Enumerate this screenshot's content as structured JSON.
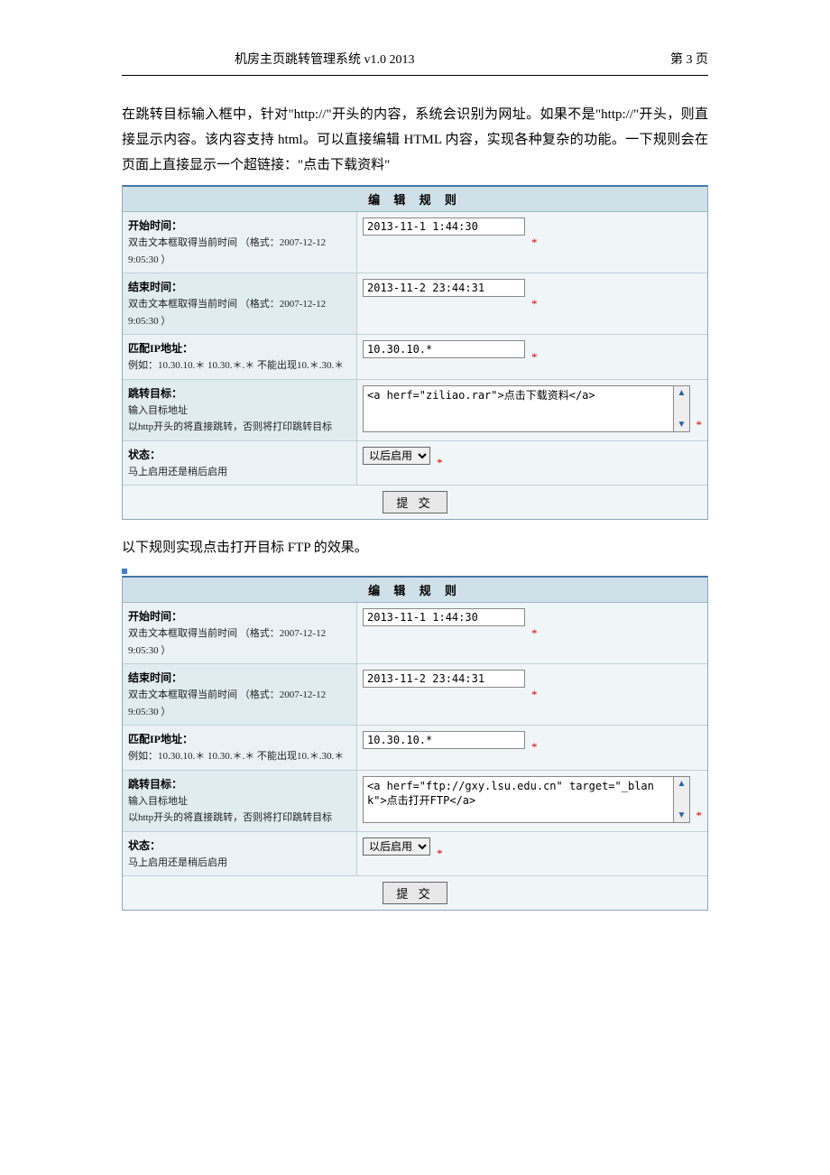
{
  "header": {
    "title": "机房主页跳转管理系统 v1.0   2013",
    "page_label": "第 3 页"
  },
  "paragraph1": "在跳转目标输入框中，针对\"http://\"开头的内容，系统会识别为网址。如果不是\"http://\"开头，则直接显示内容。该内容支持 html。可以直接编辑 HTML 内容，实现各种复杂的功能。一下规则会在页面上直接显示一个超链接：\"点击下载资料\"",
  "paragraph2": "以下规则实现点击打开目标 FTP 的效果。",
  "form_title": "编 辑 规 则",
  "labels": {
    "start_time_title": "开始时间：",
    "start_time_hint": "双击文本框取得当前时间 （格式：2007-12-12 9:05:30 ）",
    "end_time_title": "结束时间：",
    "end_time_hint": "双击文本框取得当前时间 （格式：2007-12-12 9:05:30 ）",
    "ip_title": "匹配IP地址：",
    "ip_hint": "例如：10.30.10.＊ 10.30.＊.＊  不能出现10.＊.30.＊",
    "target_title": "跳转目标：",
    "target_hint1": "输入目标地址",
    "target_hint2": "以http开头的将直接跳转，否则将打印跳转目标",
    "status_title": "状态：",
    "status_hint": "马上启用还是稍后启用"
  },
  "form1": {
    "start_time": "2013-11-1 1:44:30",
    "end_time": "2013-11-2 23:44:31",
    "ip": "10.30.10.*",
    "target_text": "<a herf=\"ziliao.rar\">点击下载资料</a>",
    "status_selected": "以后启用"
  },
  "form2": {
    "start_time": "2013-11-1 1:44:30",
    "end_time": "2013-11-2 23:44:31",
    "ip": "10.30.10.*",
    "target_text": "<a herf=\"ftp://gxy.lsu.edu.cn\" target=\"_blank\">点击打开FTP</a>",
    "status_selected": "以后启用"
  },
  "submit_label": "提 交",
  "required_marker": "*"
}
